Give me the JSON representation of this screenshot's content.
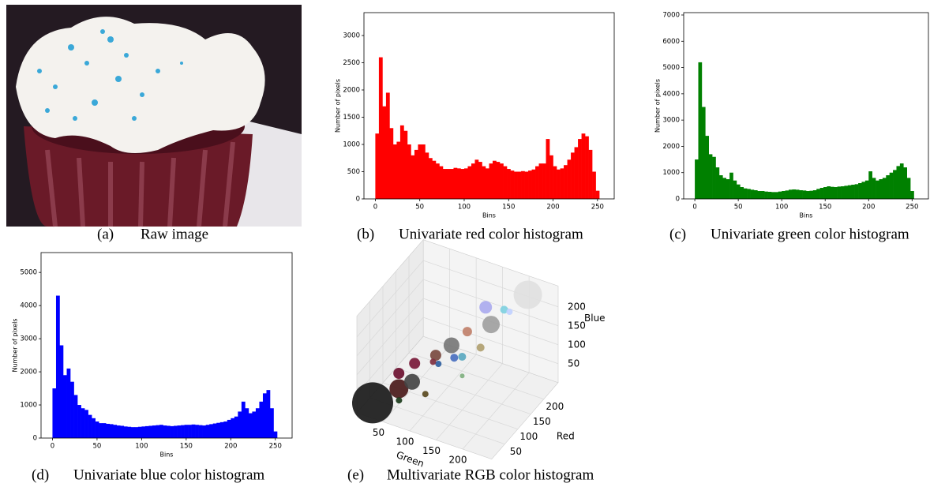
{
  "figure": {
    "label": "(a)",
    "caption": "Raw image"
  },
  "chart_data": [
    {
      "type": "histogram",
      "label": "(b)",
      "caption": "Univariate red color histogram",
      "xlabel": "Bins",
      "ylabel": "Number of pixels",
      "bins": [
        0,
        4,
        8,
        12,
        16,
        20,
        24,
        28,
        32,
        36,
        40,
        44,
        48,
        52,
        56,
        60,
        64,
        68,
        72,
        76,
        80,
        84,
        88,
        92,
        96,
        100,
        104,
        108,
        112,
        116,
        120,
        124,
        128,
        132,
        136,
        140,
        144,
        148,
        152,
        156,
        160,
        164,
        168,
        172,
        176,
        180,
        184,
        188,
        192,
        196,
        200,
        204,
        208,
        212,
        216,
        220,
        224,
        228,
        232,
        236,
        240,
        244,
        248,
        252,
        256
      ],
      "series": [
        {
          "name": "Red",
          "color": "#ff0000",
          "values": [
            1200,
            2600,
            1700,
            1950,
            1300,
            1000,
            1050,
            1350,
            1250,
            1000,
            800,
            900,
            1000,
            1000,
            850,
            750,
            700,
            650,
            600,
            550,
            550,
            550,
            570,
            560,
            550,
            560,
            600,
            650,
            720,
            680,
            600,
            560,
            650,
            700,
            680,
            650,
            600,
            550,
            520,
            500,
            500,
            510,
            500,
            520,
            540,
            600,
            650,
            650,
            1100,
            800,
            600,
            540,
            560,
            620,
            720,
            850,
            950,
            1100,
            1200,
            1150,
            900,
            500,
            150,
            0
          ]
        }
      ],
      "xlim": [
        -12.8,
        268.8
      ],
      "xticks": [
        0,
        50,
        100,
        150,
        200,
        250
      ],
      "ylim": [
        0,
        3420
      ],
      "yticks": [
        0,
        500,
        1000,
        1500,
        2000,
        2500,
        3000
      ]
    },
    {
      "type": "histogram",
      "label": "(c)",
      "caption": "Univariate green color histogram",
      "xlabel": "Bins",
      "ylabel": "Number of pixels",
      "bins": [
        0,
        4,
        8,
        12,
        16,
        20,
        24,
        28,
        32,
        36,
        40,
        44,
        48,
        52,
        56,
        60,
        64,
        68,
        72,
        76,
        80,
        84,
        88,
        92,
        96,
        100,
        104,
        108,
        112,
        116,
        120,
        124,
        128,
        132,
        136,
        140,
        144,
        148,
        152,
        156,
        160,
        164,
        168,
        172,
        176,
        180,
        184,
        188,
        192,
        196,
        200,
        204,
        208,
        212,
        216,
        220,
        224,
        228,
        232,
        236,
        240,
        244,
        248,
        252,
        256
      ],
      "series": [
        {
          "name": "Green",
          "color": "#008000",
          "values": [
            1500,
            5200,
            3500,
            2400,
            1700,
            1600,
            1200,
            900,
            800,
            750,
            1000,
            700,
            550,
            450,
            400,
            380,
            350,
            330,
            300,
            300,
            280,
            270,
            260,
            260,
            280,
            300,
            320,
            350,
            360,
            350,
            330,
            320,
            300,
            310,
            330,
            380,
            420,
            450,
            480,
            460,
            450,
            470,
            480,
            500,
            520,
            540,
            560,
            600,
            650,
            700,
            1050,
            800,
            700,
            750,
            800,
            900,
            1000,
            1100,
            1250,
            1350,
            1200,
            800,
            300,
            0
          ]
        }
      ],
      "xlim": [
        -12.8,
        268.8
      ],
      "xticks": [
        0,
        50,
        100,
        150,
        200,
        250
      ],
      "ylim": [
        0,
        7090
      ],
      "yticks": [
        0,
        1000,
        2000,
        3000,
        4000,
        5000,
        6000,
        7000
      ]
    },
    {
      "type": "histogram",
      "label": "(d)",
      "caption": "Univariate blue color histogram",
      "xlabel": "Bins",
      "ylabel": "Number of pixels",
      "bins": [
        0,
        4,
        8,
        12,
        16,
        20,
        24,
        28,
        32,
        36,
        40,
        44,
        48,
        52,
        56,
        60,
        64,
        68,
        72,
        76,
        80,
        84,
        88,
        92,
        96,
        100,
        104,
        108,
        112,
        116,
        120,
        124,
        128,
        132,
        136,
        140,
        144,
        148,
        152,
        156,
        160,
        164,
        168,
        172,
        176,
        180,
        184,
        188,
        192,
        196,
        200,
        204,
        208,
        212,
        216,
        220,
        224,
        228,
        232,
        236,
        240,
        244,
        248,
        252,
        256
      ],
      "series": [
        {
          "name": "Blue",
          "color": "#0000ff",
          "values": [
            1500,
            4300,
            2800,
            1900,
            2100,
            1700,
            1300,
            1000,
            900,
            850,
            700,
            600,
            500,
            450,
            450,
            430,
            420,
            400,
            380,
            370,
            350,
            340,
            330,
            330,
            340,
            350,
            360,
            370,
            380,
            390,
            400,
            380,
            370,
            360,
            370,
            380,
            390,
            400,
            400,
            410,
            400,
            390,
            380,
            400,
            420,
            440,
            460,
            480,
            500,
            550,
            600,
            650,
            800,
            1100,
            900,
            750,
            800,
            900,
            1100,
            1350,
            1450,
            900,
            200,
            0
          ]
        }
      ],
      "xlim": [
        -12.8,
        268.8
      ],
      "xticks": [
        0,
        50,
        100,
        150,
        200,
        250
      ],
      "ylim": [
        0,
        5600
      ],
      "yticks": [
        0,
        1000,
        2000,
        3000,
        4000,
        5000
      ]
    },
    {
      "type": "scatter3d",
      "label": "(e)",
      "caption": "Multivariate RGB color histogram",
      "xlabel": "Green",
      "ylabel": "Red",
      "zlabel": "Blue",
      "x": [
        20,
        50,
        70,
        40,
        60,
        90,
        110,
        130,
        150,
        170,
        210,
        180,
        120,
        100,
        80,
        140,
        160,
        60,
        100,
        200,
        150
      ],
      "y": [
        20,
        60,
        70,
        80,
        100,
        120,
        140,
        160,
        190,
        170,
        230,
        200,
        130,
        110,
        130,
        120,
        150,
        40,
        60,
        180,
        100
      ],
      "z": [
        20,
        40,
        60,
        60,
        80,
        100,
        120,
        150,
        200,
        180,
        230,
        200,
        100,
        90,
        70,
        120,
        130,
        30,
        50,
        220,
        90
      ],
      "sizes": [
        26,
        12,
        10,
        7,
        7,
        7,
        10,
        6,
        8,
        11,
        18,
        5,
        5,
        4,
        4,
        5,
        5,
        4,
        4,
        4,
        3
      ],
      "colors": [
        "#1a1a1a",
        "#4a1a1a",
        "#444444",
        "#6b1030",
        "#7a1a3a",
        "#7a4a40",
        "#777777",
        "#c0806a",
        "#aaaaee",
        "#a0a0a0",
        "#e0e0e0",
        "#7fd0e0",
        "#4a70c0",
        "#3060a0",
        "#803040",
        "#5aa8c0",
        "#b0a070",
        "#1a3a1a",
        "#5a4a20",
        "#c0d0ff",
        "#80b080"
      ],
      "xlim": [
        0,
        255
      ],
      "ylim": [
        0,
        255
      ],
      "zlim": [
        0,
        255
      ],
      "xticks": [
        50,
        100,
        150,
        200
      ],
      "yticks": [
        50,
        100,
        150,
        200
      ],
      "zticks": [
        50,
        100,
        150,
        200
      ]
    }
  ]
}
